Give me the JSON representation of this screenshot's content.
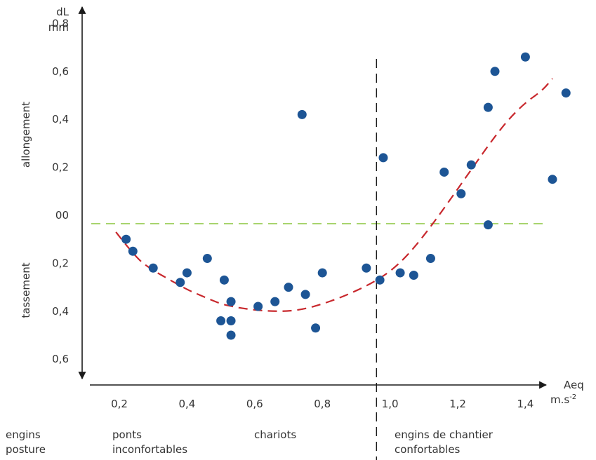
{
  "chart_data": {
    "type": "scatter",
    "y_unit": [
      "dL",
      "mm"
    ],
    "x_unit": [
      "Aeq",
      "m.s",
      "-2"
    ],
    "ylabel_upper": "allongement",
    "ylabel_lower": "tassement",
    "y_ticks": [
      {
        "value": 0.8,
        "label": "0,8"
      },
      {
        "value": 0.6,
        "label": "0,6"
      },
      {
        "value": 0.4,
        "label": "0,4"
      },
      {
        "value": 0.2,
        "label": "0,2"
      },
      {
        "value": 0.0,
        "label": "00"
      },
      {
        "value": -0.2,
        "label": "0,2"
      },
      {
        "value": -0.4,
        "label": "0,4"
      },
      {
        "value": -0.6,
        "label": "0,6"
      }
    ],
    "x_ticks": [
      {
        "value": 0.2,
        "label": "0,2"
      },
      {
        "value": 0.4,
        "label": "0,4"
      },
      {
        "value": 0.6,
        "label": "0,6"
      },
      {
        "value": 0.8,
        "label": "0,8"
      },
      {
        "value": 1.0,
        "label": "1,0"
      },
      {
        "value": 1.2,
        "label": "1,2"
      },
      {
        "value": 1.4,
        "label": "1,4"
      }
    ],
    "xlim": [
      0.0,
      1.52
    ],
    "ylim": [
      -0.65,
      0.85
    ],
    "points": [
      [
        0.22,
        -0.1
      ],
      [
        0.24,
        -0.15
      ],
      [
        0.3,
        -0.22
      ],
      [
        0.38,
        -0.28
      ],
      [
        0.4,
        -0.24
      ],
      [
        0.46,
        -0.18
      ],
      [
        0.5,
        -0.44
      ],
      [
        0.51,
        -0.27
      ],
      [
        0.53,
        -0.36
      ],
      [
        0.53,
        -0.44
      ],
      [
        0.53,
        -0.5
      ],
      [
        0.61,
        -0.38
      ],
      [
        0.66,
        -0.36
      ],
      [
        0.7,
        -0.3
      ],
      [
        0.74,
        0.42
      ],
      [
        0.75,
        -0.33
      ],
      [
        0.78,
        -0.47
      ],
      [
        0.8,
        -0.24
      ],
      [
        0.93,
        -0.22
      ],
      [
        0.97,
        -0.27
      ],
      [
        0.98,
        0.24
      ],
      [
        1.03,
        -0.24
      ],
      [
        1.07,
        -0.25
      ],
      [
        1.12,
        -0.18
      ],
      [
        1.16,
        0.18
      ],
      [
        1.21,
        0.09
      ],
      [
        1.24,
        0.21
      ],
      [
        1.29,
        0.45
      ],
      [
        1.29,
        -0.04
      ],
      [
        1.31,
        0.6
      ],
      [
        1.4,
        0.66
      ],
      [
        1.48,
        0.15
      ],
      [
        1.52,
        0.51
      ]
    ],
    "trend_curve": [
      [
        0.19,
        -0.07
      ],
      [
        0.25,
        -0.18
      ],
      [
        0.3,
        -0.23
      ],
      [
        0.35,
        -0.27
      ],
      [
        0.4,
        -0.31
      ],
      [
        0.45,
        -0.34
      ],
      [
        0.5,
        -0.37
      ],
      [
        0.55,
        -0.385
      ],
      [
        0.6,
        -0.395
      ],
      [
        0.65,
        -0.4
      ],
      [
        0.7,
        -0.4
      ],
      [
        0.75,
        -0.39
      ],
      [
        0.8,
        -0.37
      ],
      [
        0.85,
        -0.345
      ],
      [
        0.9,
        -0.315
      ],
      [
        0.95,
        -0.28
      ],
      [
        1.0,
        -0.235
      ],
      [
        1.05,
        -0.17
      ],
      [
        1.1,
        -0.085
      ],
      [
        1.15,
        0.01
      ],
      [
        1.2,
        0.11
      ],
      [
        1.25,
        0.21
      ],
      [
        1.3,
        0.31
      ],
      [
        1.35,
        0.4
      ],
      [
        1.4,
        0.47
      ],
      [
        1.45,
        0.52
      ],
      [
        1.48,
        0.57
      ]
    ],
    "baseline_y": 0.0,
    "divider_x": 0.96,
    "categories": [
      {
        "lines": [
          "engins",
          "posture"
        ]
      },
      {
        "lines": [
          "ponts",
          "inconfortables"
        ]
      },
      {
        "lines": [
          "chariots"
        ]
      },
      {
        "lines": [
          "engins de chantier",
          "confortables"
        ]
      }
    ],
    "colors": {
      "points": "#1d5595",
      "trend": "#c8282d",
      "baseline": "#8cc63f",
      "axis": "#1a1a1a",
      "text": "#333333"
    }
  }
}
